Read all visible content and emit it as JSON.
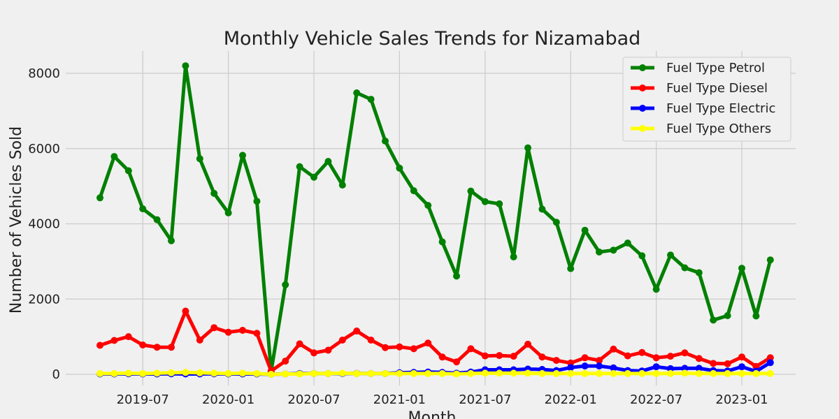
{
  "chart_data": {
    "type": "line",
    "title": "Monthly Vehicle Sales Trends for Nizamabad",
    "xlabel": "Month",
    "ylabel": "Number of Vehicles Sold",
    "ylim": [
      -300,
      8600
    ],
    "yticks": [
      0,
      2000,
      4000,
      6000,
      8000
    ],
    "yticklabels": [
      "0",
      "2000",
      "4000",
      "6000",
      "8000"
    ],
    "xticks": [
      "2019-07",
      "2020-01",
      "2020-07",
      "2021-01",
      "2021-07",
      "2022-01",
      "2022-07",
      "2023-01"
    ],
    "x_start": "2019-04",
    "months": [
      "2019-04",
      "2019-05",
      "2019-06",
      "2019-07",
      "2019-08",
      "2019-09",
      "2019-10",
      "2019-11",
      "2019-12",
      "2020-01",
      "2020-02",
      "2020-03",
      "2020-04",
      "2020-05",
      "2020-06",
      "2020-07",
      "2020-08",
      "2020-09",
      "2020-10",
      "2020-11",
      "2020-12",
      "2021-01",
      "2021-02",
      "2021-03",
      "2021-04",
      "2021-05",
      "2021-06",
      "2021-07",
      "2021-08",
      "2021-09",
      "2021-10",
      "2021-11",
      "2021-12",
      "2022-01",
      "2022-02",
      "2022-03",
      "2022-04",
      "2022-05",
      "2022-06",
      "2022-07",
      "2022-08",
      "2022-09",
      "2022-10",
      "2022-11",
      "2022-12",
      "2023-01",
      "2023-02",
      "2023-03"
    ],
    "grid": true,
    "legend_position": "top-right",
    "series": [
      {
        "name": "Fuel Type Petrol",
        "color": "#008000",
        "values": [
          4690,
          5790,
          5410,
          4400,
          4110,
          3550,
          8200,
          5730,
          4810,
          4290,
          5820,
          4600,
          80,
          2380,
          5520,
          5240,
          5660,
          5030,
          7480,
          7310,
          6200,
          5480,
          4880,
          4490,
          3520,
          2610,
          4870,
          4590,
          4530,
          3120,
          6020,
          4390,
          4040,
          2810,
          3830,
          3250,
          3300,
          3490,
          3150,
          2260,
          3170,
          2830,
          2700,
          1440,
          1560,
          2820,
          1550,
          3040
        ]
      },
      {
        "name": "Fuel Type Diesel",
        "color": "#ff0000",
        "values": [
          770,
          900,
          1000,
          780,
          720,
          720,
          1680,
          910,
          1240,
          1120,
          1170,
          1090,
          90,
          350,
          810,
          570,
          640,
          910,
          1150,
          910,
          710,
          730,
          680,
          830,
          460,
          330,
          680,
          490,
          500,
          480,
          800,
          460,
          370,
          300,
          440,
          370,
          670,
          490,
          580,
          440,
          480,
          570,
          420,
          290,
          280,
          460,
          210,
          440
        ]
      },
      {
        "name": "Fuel Type Electric",
        "color": "#0000ff",
        "values": [
          10,
          10,
          15,
          10,
          10,
          15,
          10,
          10,
          15,
          10,
          10,
          10,
          0,
          10,
          20,
          20,
          20,
          20,
          25,
          20,
          20,
          40,
          50,
          60,
          50,
          30,
          60,
          120,
          120,
          120,
          140,
          130,
          100,
          180,
          220,
          220,
          170,
          100,
          90,
          200,
          150,
          160,
          160,
          100,
          90,
          200,
          80,
          310
        ]
      },
      {
        "name": "Fuel Type Others",
        "color": "#ffff00",
        "values": [
          20,
          20,
          30,
          20,
          30,
          40,
          50,
          40,
          30,
          20,
          30,
          20,
          0,
          10,
          10,
          20,
          20,
          30,
          20,
          20,
          20,
          20,
          20,
          20,
          20,
          10,
          20,
          30,
          30,
          30,
          30,
          20,
          20,
          20,
          20,
          20,
          20,
          20,
          20,
          20,
          20,
          30,
          20,
          20,
          20,
          20,
          20,
          20
        ]
      }
    ]
  }
}
